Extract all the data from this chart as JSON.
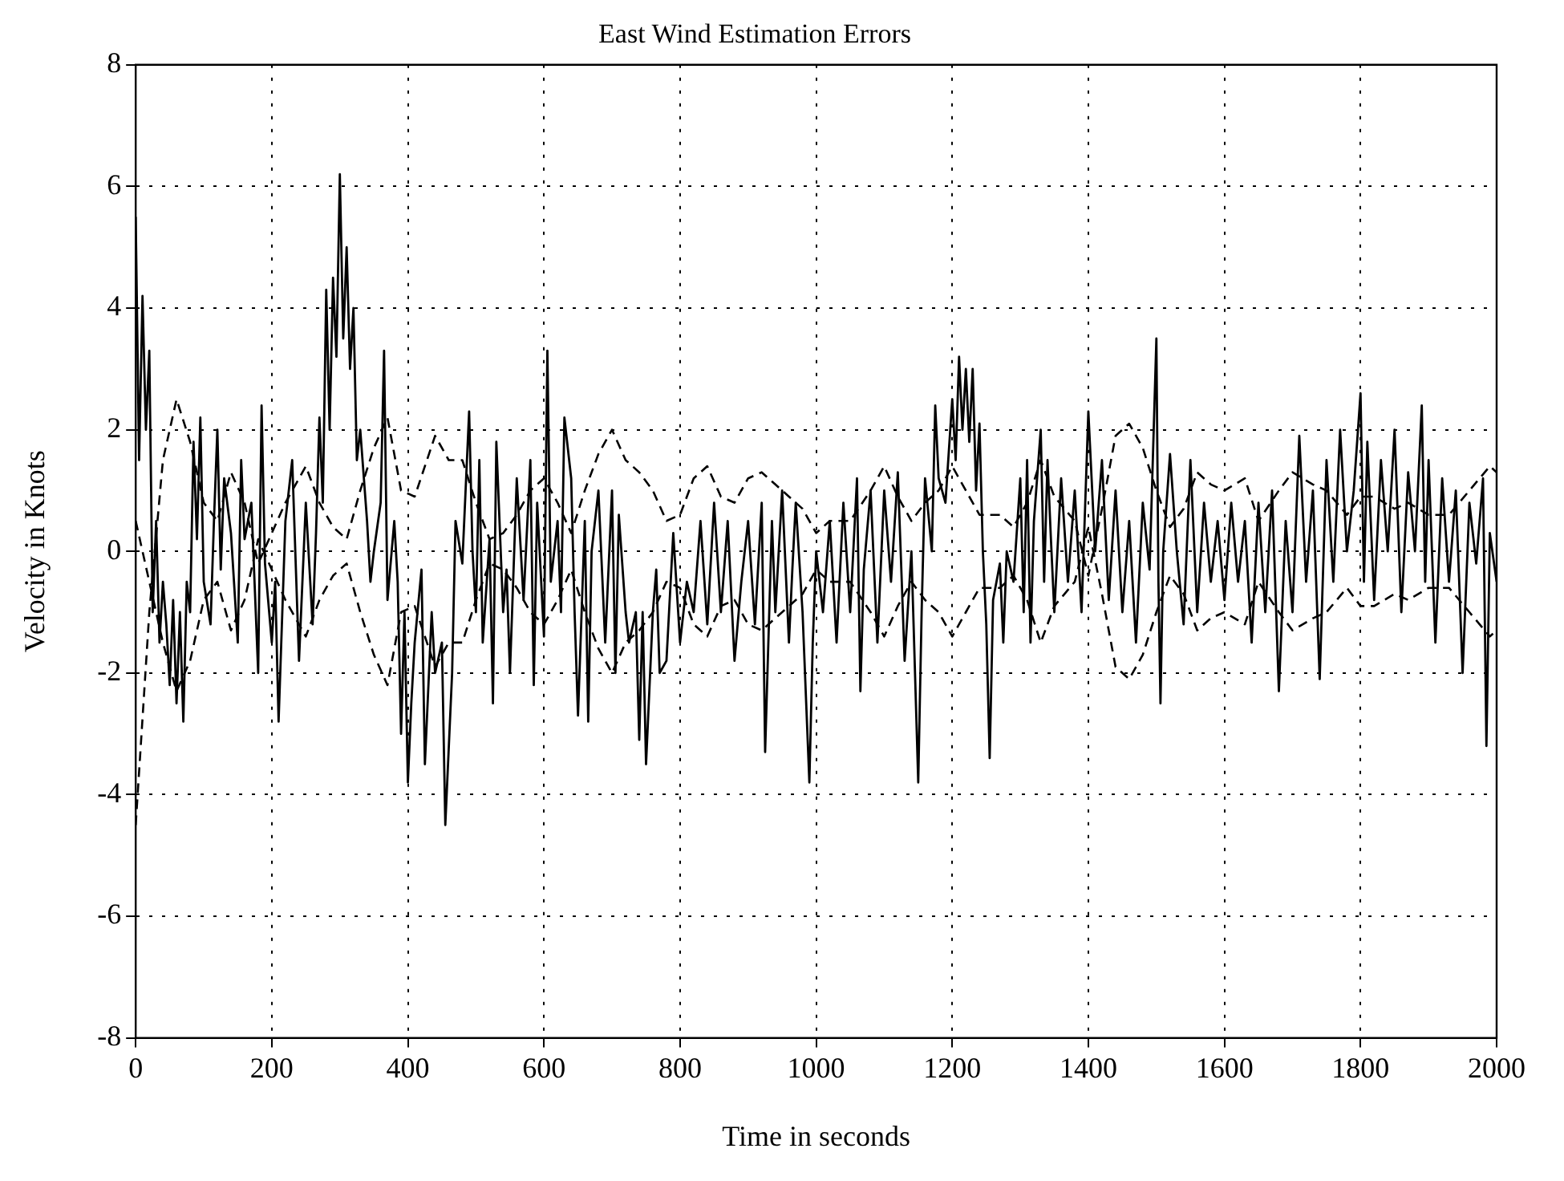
{
  "chart_data": {
    "type": "line",
    "title": "East Wind Estimation Errors",
    "xlabel": "Time in seconds",
    "ylabel": "Velocity in Knots",
    "xlim": [
      0,
      2000
    ],
    "ylim": [
      -8,
      8
    ],
    "xticks": [
      0,
      200,
      400,
      600,
      800,
      1000,
      1200,
      1400,
      1600,
      1800,
      2000
    ],
    "yticks": [
      -8,
      -6,
      -4,
      -2,
      0,
      2,
      4,
      6,
      8
    ],
    "grid": true,
    "legend": false,
    "marker": "none",
    "series": [
      {
        "color": "#000000",
        "line_style": "solid",
        "x": [
          0,
          5,
          10,
          15,
          20,
          25,
          30,
          35,
          40,
          45,
          50,
          55,
          60,
          65,
          70,
          75,
          80,
          85,
          90,
          95,
          100,
          110,
          115,
          120,
          125,
          130,
          140,
          150,
          155,
          160,
          170,
          180,
          185,
          190,
          200,
          205,
          210,
          220,
          230,
          240,
          250,
          260,
          265,
          270,
          275,
          280,
          285,
          290,
          295,
          300,
          305,
          310,
          315,
          320,
          325,
          330,
          340,
          345,
          350,
          360,
          365,
          370,
          380,
          385,
          390,
          395,
          400,
          405,
          410,
          420,
          425,
          435,
          440,
          450,
          455,
          465,
          470,
          480,
          490,
          495,
          500,
          505,
          510,
          520,
          525,
          530,
          540,
          545,
          550,
          560,
          570,
          580,
          585,
          590,
          600,
          605,
          610,
          620,
          625,
          630,
          640,
          645,
          650,
          660,
          665,
          670,
          680,
          690,
          700,
          705,
          710,
          720,
          725,
          735,
          740,
          745,
          750,
          760,
          765,
          770,
          780,
          790,
          800,
          810,
          820,
          830,
          840,
          850,
          860,
          870,
          880,
          890,
          900,
          910,
          920,
          925,
          935,
          940,
          950,
          960,
          965,
          970,
          980,
          990,
          995,
          1000,
          1010,
          1020,
          1030,
          1040,
          1050,
          1060,
          1065,
          1070,
          1080,
          1090,
          1100,
          1110,
          1120,
          1130,
          1140,
          1150,
          1155,
          1160,
          1170,
          1175,
          1180,
          1190,
          1200,
          1205,
          1210,
          1215,
          1220,
          1225,
          1230,
          1235,
          1240,
          1245,
          1250,
          1255,
          1260,
          1270,
          1275,
          1280,
          1290,
          1300,
          1305,
          1310,
          1315,
          1320,
          1330,
          1335,
          1340,
          1345,
          1350,
          1360,
          1370,
          1380,
          1390,
          1400,
          1410,
          1420,
          1430,
          1440,
          1450,
          1460,
          1470,
          1480,
          1490,
          1500,
          1503,
          1506,
          1510,
          1520,
          1530,
          1540,
          1550,
          1560,
          1570,
          1580,
          1590,
          1600,
          1610,
          1620,
          1630,
          1640,
          1650,
          1660,
          1670,
          1680,
          1690,
          1700,
          1710,
          1720,
          1730,
          1740,
          1750,
          1760,
          1770,
          1780,
          1790,
          1800,
          1805,
          1810,
          1820,
          1830,
          1840,
          1850,
          1860,
          1870,
          1880,
          1890,
          1895,
          1900,
          1910,
          1920,
          1930,
          1940,
          1950,
          1960,
          1970,
          1980,
          1985,
          1990,
          2000
        ],
        "values": [
          5.5,
          1.5,
          4.2,
          2,
          3.3,
          -1,
          0.5,
          -1.5,
          -0.5,
          -1.2,
          -2.2,
          -0.8,
          -2.5,
          -1,
          -2.8,
          -0.5,
          -1,
          1.8,
          0.2,
          2.2,
          -0.5,
          -1.2,
          0.5,
          2,
          -0.3,
          1.2,
          0.3,
          -1.5,
          1.5,
          0.2,
          0.8,
          -2,
          2.4,
          -0.2,
          -1.5,
          -0.5,
          -2.8,
          0.5,
          1.5,
          -1.8,
          0.8,
          -1.2,
          0.3,
          2.2,
          0.8,
          4.3,
          2,
          4.5,
          3.2,
          6.2,
          3.5,
          5,
          3,
          4,
          1.5,
          2,
          0.5,
          -0.5,
          0,
          0.8,
          3.3,
          -0.8,
          0.5,
          -0.5,
          -3,
          -1,
          -3.8,
          -2.5,
          -1.5,
          -0.3,
          -3.5,
          -1,
          -2,
          -1.5,
          -4.5,
          -2,
          0.5,
          -0.2,
          2.3,
          0,
          -1,
          1.5,
          -1.5,
          0.2,
          -2.5,
          1.8,
          -1,
          -0.3,
          -2,
          1.2,
          -0.8,
          1.5,
          -2.2,
          0.8,
          -1.4,
          3.3,
          -0.5,
          0.5,
          -1,
          2.2,
          1.2,
          -1,
          -2.7,
          0.5,
          -2.8,
          0,
          1,
          -1.5,
          1,
          -2,
          0.6,
          -1,
          -1.5,
          -1,
          -3.1,
          -1,
          -3.5,
          -1,
          -0.3,
          -2,
          -1.8,
          0.3,
          -1.5,
          -0.5,
          -1,
          0.5,
          -1.2,
          0.8,
          -1,
          0.5,
          -1.8,
          -0.5,
          0.5,
          -1.2,
          0.8,
          -3.3,
          0.5,
          -1,
          1,
          -1.5,
          -0.3,
          0.8,
          -1,
          -3.8,
          -1.5,
          0,
          -1,
          0.5,
          -1.5,
          0.8,
          -1,
          1.2,
          -2.3,
          -0.3,
          1,
          -1.5,
          1,
          -0.5,
          1.3,
          -1.8,
          0,
          -3.8,
          -1,
          1.2,
          0,
          2.4,
          1.2,
          0.8,
          2.5,
          1.5,
          3.2,
          2,
          3,
          1.8,
          3,
          1,
          2.1,
          0,
          -1.2,
          -3.4,
          -0.8,
          -0.2,
          -1.5,
          0,
          -0.5,
          1.2,
          -1,
          1.5,
          -1.5,
          0.5,
          2,
          -0.5,
          1.5,
          0.2,
          -1,
          1.2,
          -0.5,
          1,
          -1,
          2.3,
          0,
          1.5,
          -0.8,
          1,
          -1,
          0.5,
          -1.5,
          0.8,
          -0.3,
          3.5,
          -0.5,
          -2.5,
          0,
          1.6,
          0,
          -1.2,
          1.5,
          -1,
          0.8,
          -0.5,
          0.5,
          -0.8,
          0.8,
          -0.5,
          0.5,
          -1.5,
          0.8,
          -1,
          1,
          -2.3,
          0.5,
          -1,
          1.9,
          -0.5,
          1,
          -2.1,
          1.5,
          -0.5,
          2,
          0,
          1,
          2.6,
          -0.5,
          1.8,
          -0.8,
          1.5,
          0,
          2,
          -1,
          1.3,
          0,
          2.4,
          -0.5,
          1.5,
          -1.5,
          1.2,
          -0.5,
          1,
          -2,
          0.8,
          -0.2,
          1.2,
          -3.2,
          0.3,
          -0.5
        ]
      },
      {
        "color": "#000000",
        "line_style": "dashed",
        "x": [
          0,
          20,
          40,
          60,
          80,
          100,
          120,
          140,
          160,
          180,
          200,
          220,
          250,
          270,
          290,
          310,
          330,
          350,
          370,
          390,
          410,
          440,
          460,
          480,
          500,
          520,
          540,
          560,
          580,
          600,
          620,
          640,
          660,
          680,
          700,
          720,
          740,
          760,
          780,
          800,
          820,
          840,
          860,
          880,
          900,
          920,
          940,
          960,
          980,
          1000,
          1020,
          1050,
          1080,
          1100,
          1120,
          1140,
          1160,
          1180,
          1200,
          1220,
          1240,
          1270,
          1290,
          1310,
          1330,
          1350,
          1380,
          1400,
          1420,
          1440,
          1460,
          1480,
          1500,
          1520,
          1540,
          1560,
          1580,
          1600,
          1630,
          1650,
          1680,
          1700,
          1730,
          1750,
          1780,
          1800,
          1820,
          1850,
          1870,
          1900,
          1930,
          1960,
          1990,
          2000
        ],
        "values": [
          -4.5,
          -1,
          1.5,
          2.5,
          1.8,
          0.8,
          0.5,
          1.3,
          0.8,
          -0.2,
          0.3,
          0.8,
          1.4,
          0.8,
          0.4,
          0.2,
          1,
          1.7,
          2.2,
          1,
          0.9,
          1.9,
          1.5,
          1.5,
          0.8,
          0.2,
          0.3,
          0.6,
          1,
          1.2,
          0.8,
          0.3,
          1,
          1.6,
          2,
          1.5,
          1.3,
          1,
          0.5,
          0.6,
          1.2,
          1.4,
          0.9,
          0.8,
          1.2,
          1.3,
          1.1,
          0.9,
          0.7,
          0.3,
          0.5,
          0.5,
          1,
          1.4,
          0.9,
          0.5,
          0.8,
          1,
          1.4,
          1,
          0.6,
          0.6,
          0.4,
          0.8,
          1.5,
          0.9,
          0.5,
          -0.4,
          0.7,
          1.9,
          2.1,
          1.7,
          1,
          0.4,
          0.7,
          1.3,
          1.1,
          1,
          1.2,
          0.5,
          1,
          1.3,
          1.1,
          1,
          0.6,
          0.9,
          0.9,
          0.7,
          0.8,
          0.6,
          0.6,
          1,
          1.4,
          1.3
        ]
      },
      {
        "color": "#000000",
        "line_style": "dashed",
        "x": [
          0,
          20,
          40,
          60,
          80,
          100,
          120,
          140,
          160,
          180,
          200,
          220,
          250,
          270,
          290,
          310,
          330,
          350,
          370,
          390,
          410,
          440,
          460,
          480,
          500,
          520,
          540,
          560,
          580,
          600,
          620,
          640,
          660,
          680,
          700,
          720,
          740,
          760,
          780,
          800,
          820,
          840,
          860,
          880,
          900,
          920,
          940,
          960,
          980,
          1000,
          1020,
          1050,
          1080,
          1100,
          1120,
          1140,
          1160,
          1180,
          1200,
          1220,
          1240,
          1270,
          1290,
          1310,
          1330,
          1350,
          1380,
          1400,
          1420,
          1440,
          1460,
          1480,
          1500,
          1520,
          1540,
          1560,
          1580,
          1600,
          1630,
          1650,
          1680,
          1700,
          1730,
          1750,
          1780,
          1800,
          1820,
          1850,
          1870,
          1900,
          1930,
          1960,
          1990,
          2000
        ],
        "values": [
          0.5,
          -0.5,
          -1.5,
          -2.3,
          -1.8,
          -0.8,
          -0.5,
          -1.3,
          -0.8,
          0.2,
          -0.3,
          -0.8,
          -1.4,
          -0.8,
          -0.4,
          -0.2,
          -1,
          -1.7,
          -2.2,
          -1,
          -0.9,
          -1.9,
          -1.5,
          -1.5,
          -0.8,
          -0.2,
          -0.3,
          -0.6,
          -1,
          -1.2,
          -0.8,
          -0.3,
          -1,
          -1.6,
          -2,
          -1.5,
          -1.3,
          -1,
          -0.5,
          -0.6,
          -1.2,
          -1.4,
          -0.9,
          -0.8,
          -1.2,
          -1.3,
          -1.1,
          -0.9,
          -0.7,
          -0.3,
          -0.5,
          -0.5,
          -1,
          -1.4,
          -0.9,
          -0.5,
          -0.8,
          -1,
          -1.4,
          -1,
          -0.6,
          -0.6,
          -0.4,
          -0.8,
          -1.5,
          -0.9,
          -0.5,
          0.4,
          -0.7,
          -1.9,
          -2.1,
          -1.7,
          -1,
          -0.4,
          -0.7,
          -1.3,
          -1.1,
          -1,
          -1.2,
          -0.5,
          -1,
          -1.3,
          -1.1,
          -1,
          -0.6,
          -0.9,
          -0.9,
          -0.7,
          -0.8,
          -0.6,
          -0.6,
          -1,
          -1.4,
          -1.3
        ]
      }
    ]
  }
}
